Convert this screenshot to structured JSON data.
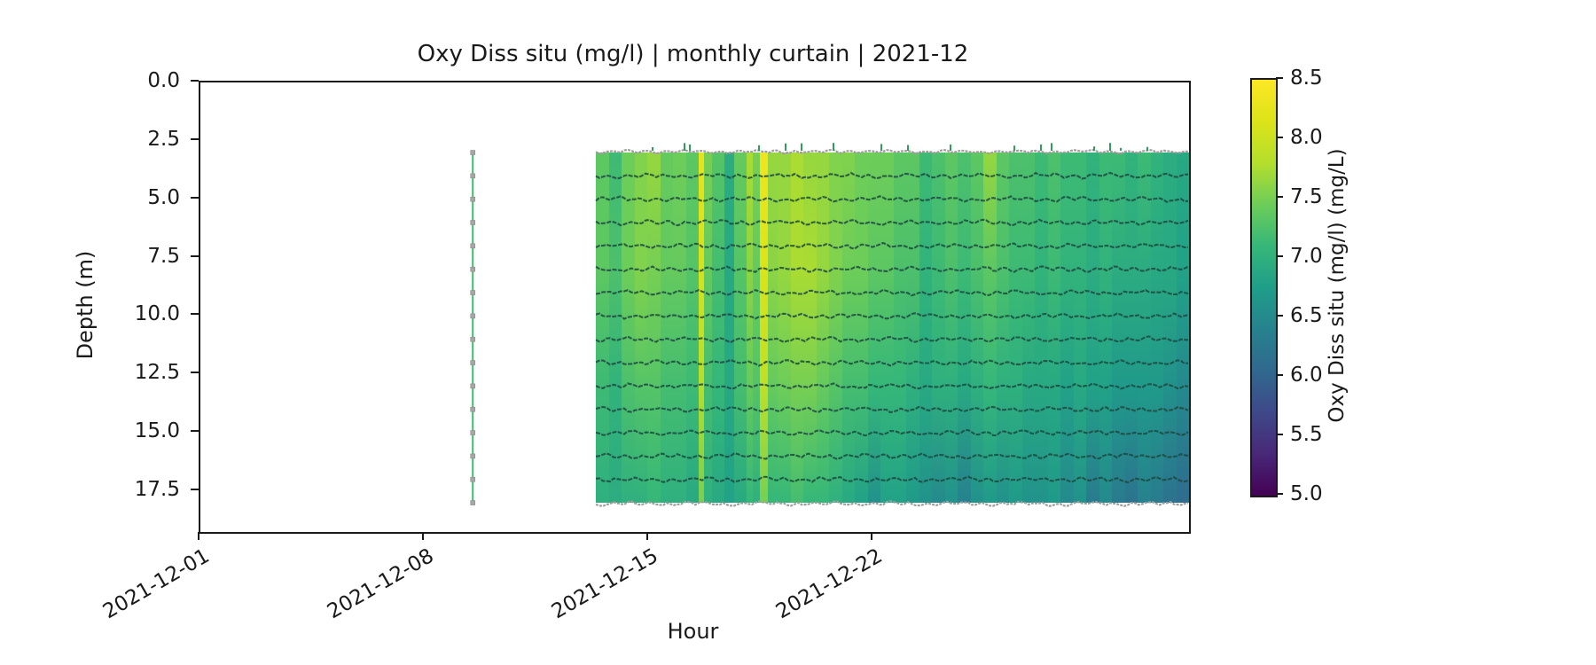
{
  "chart_data": {
    "type": "heatmap",
    "title": "Oxy Diss situ (mg/l) | monthly curtain | 2021-12",
    "xlabel": "Hour",
    "ylabel": "Depth (m)",
    "grid": false,
    "background": "#ffffff",
    "x_axis": {
      "start_date": "2021-12-01",
      "total_days": 30.85,
      "ticks": [
        {
          "label": "2021-12-01",
          "day": 0
        },
        {
          "label": "2021-12-08",
          "day": 7
        },
        {
          "label": "2021-12-15",
          "day": 14
        },
        {
          "label": "2021-12-22",
          "day": 21
        }
      ],
      "tick_rotation_deg": 30
    },
    "y_axis": {
      "range": [
        0,
        19.25
      ],
      "inverted": true,
      "ticks": [
        "0.0",
        "2.5",
        "5.0",
        "7.5",
        "10.0",
        "12.5",
        "15.0",
        "17.5"
      ]
    },
    "colorbar": {
      "label": "Oxy Diss situ (mg/l) (mg/L)",
      "vmin": 5.0,
      "vmax": 8.5,
      "ticks": [
        "5.0",
        "5.5",
        "6.0",
        "6.5",
        "7.0",
        "7.5",
        "8.0",
        "8.5"
      ],
      "colormap": "viridis",
      "stops": [
        [
          0.0,
          "#440154"
        ],
        [
          0.1,
          "#482878"
        ],
        [
          0.2,
          "#3e4989"
        ],
        [
          0.3,
          "#31688e"
        ],
        [
          0.4,
          "#26828e"
        ],
        [
          0.5,
          "#1f9e89"
        ],
        [
          0.6,
          "#35b779"
        ],
        [
          0.7,
          "#6dcd59"
        ],
        [
          0.8,
          "#b4de2c"
        ],
        [
          0.9,
          "#dce319"
        ],
        [
          1.0,
          "#fde725"
        ]
      ]
    },
    "curtain": {
      "time_start": "2021-12-13 08:00",
      "time_end": "2021-12-31 20:00",
      "start_day": 12.34,
      "end_day": 30.85,
      "depth_top_m": 3.0,
      "depth_bottom_m": 18.0,
      "sensor_trace_depths_m": [
        4,
        5,
        6,
        7,
        8,
        9,
        10,
        11,
        12,
        13,
        14,
        15,
        16,
        17
      ],
      "trace_color": "#1c4940",
      "boundary_color": "#9e9e9e",
      "spike_color": "#2f9e5a",
      "value_depth_stops_m": [
        3,
        8,
        13,
        18
      ],
      "columns": [
        [
          15,
          7.35,
          7.35,
          7.15,
          7.0
        ],
        [
          14,
          7.15,
          7.25,
          7.05,
          6.95
        ],
        [
          15,
          7.45,
          7.45,
          7.25,
          7.0
        ],
        [
          14,
          7.55,
          7.55,
          7.3,
          7.0
        ],
        [
          15,
          7.65,
          7.5,
          7.3,
          7.1
        ],
        [
          14,
          7.4,
          7.4,
          7.2,
          7.0
        ],
        [
          15,
          7.45,
          7.4,
          7.2,
          7.0
        ],
        [
          14,
          7.35,
          7.3,
          7.15,
          6.9
        ],
        [
          6,
          8.25,
          8.1,
          7.8,
          7.5
        ],
        [
          9,
          7.5,
          7.4,
          7.2,
          7.0
        ],
        [
          14,
          7.3,
          7.2,
          7.1,
          6.9
        ],
        [
          11,
          6.95,
          6.9,
          6.9,
          6.8
        ],
        [
          14,
          7.4,
          7.3,
          7.2,
          6.9
        ],
        [
          7,
          7.75,
          7.6,
          7.4,
          7.1
        ],
        [
          8,
          7.5,
          7.4,
          7.3,
          7.0
        ],
        [
          9,
          8.35,
          8.15,
          7.9,
          7.5
        ],
        [
          11,
          7.65,
          7.6,
          7.4,
          7.1
        ],
        [
          15,
          7.65,
          7.65,
          7.45,
          7.1
        ],
        [
          14,
          7.75,
          7.75,
          7.5,
          7.2
        ],
        [
          15,
          7.65,
          7.75,
          7.5,
          7.1
        ],
        [
          14,
          7.65,
          7.65,
          7.4,
          7.1
        ],
        [
          15,
          7.55,
          7.55,
          7.3,
          7.0
        ],
        [
          14,
          7.55,
          7.45,
          7.2,
          6.9
        ],
        [
          15,
          7.45,
          7.45,
          7.2,
          6.8
        ],
        [
          14,
          7.45,
          7.35,
          7.1,
          6.6
        ],
        [
          15,
          7.45,
          7.35,
          7.1,
          6.8
        ],
        [
          14,
          7.35,
          7.25,
          7.1,
          6.8
        ],
        [
          15,
          7.35,
          7.25,
          7.0,
          6.7
        ],
        [
          14,
          7.15,
          7.05,
          6.9,
          6.6
        ],
        [
          15,
          7.25,
          7.15,
          7.0,
          6.5
        ],
        [
          14,
          7.35,
          7.25,
          7.0,
          6.6
        ],
        [
          15,
          7.25,
          7.15,
          6.9,
          6.4
        ],
        [
          14,
          7.35,
          7.25,
          7.0,
          6.6
        ],
        [
          15,
          7.65,
          7.35,
          7.1,
          6.7
        ],
        [
          14,
          7.35,
          7.25,
          7.0,
          6.6
        ],
        [
          15,
          7.25,
          7.15,
          7.0,
          6.7
        ],
        [
          14,
          7.25,
          7.15,
          6.9,
          6.6
        ],
        [
          15,
          7.15,
          7.05,
          6.9,
          6.6
        ],
        [
          14,
          7.25,
          7.15,
          6.9,
          6.7
        ],
        [
          15,
          7.15,
          7.05,
          6.8,
          6.5
        ],
        [
          14,
          7.15,
          7.05,
          6.9,
          6.6
        ],
        [
          15,
          7.05,
          6.95,
          6.8,
          6.3
        ],
        [
          14,
          7.15,
          7.05,
          6.8,
          6.5
        ],
        [
          15,
          7.15,
          6.95,
          6.7,
          6.3
        ],
        [
          14,
          7.05,
          6.95,
          6.7,
          6.2
        ],
        [
          15,
          7.15,
          6.95,
          6.7,
          6.4
        ],
        [
          14,
          7.05,
          6.9,
          6.7,
          6.3
        ],
        [
          15,
          6.95,
          6.9,
          6.6,
          6.2
        ],
        [
          14,
          6.9,
          6.8,
          6.5,
          6.1
        ]
      ]
    },
    "profile": {
      "time": "2021-12-09 12:00",
      "day": 8.5,
      "depth_top_m": 3.0,
      "depth_bottom_m": 18.0,
      "marker_depths_m": [
        3,
        4,
        5,
        6,
        7,
        8,
        9,
        10,
        11,
        12,
        13,
        14,
        15,
        16,
        17,
        18
      ],
      "line_color": "#3fbd6f",
      "marker_color": "#a6a6a6"
    }
  }
}
